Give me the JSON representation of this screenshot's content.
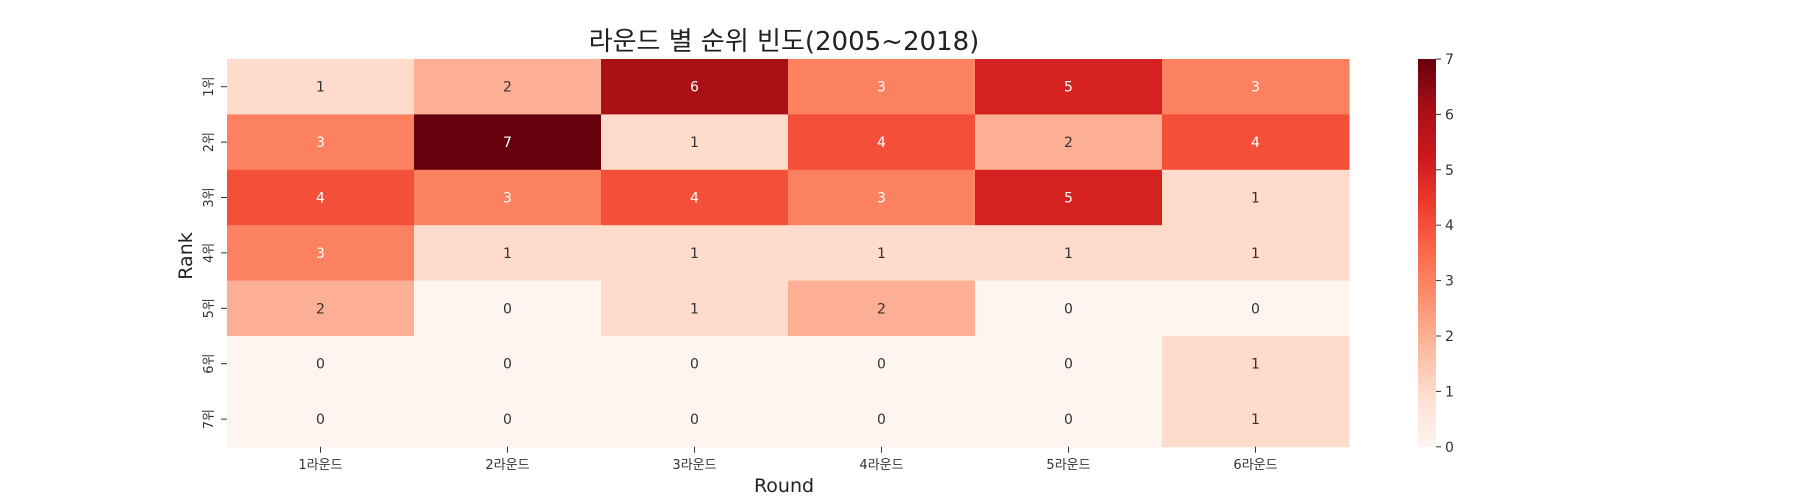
{
  "chart_data": {
    "type": "heatmap",
    "title": "라운드 별 순위 빈도(2005~2018)",
    "xlabel": "Round",
    "ylabel": "Rank",
    "x_categories": [
      "1라운드",
      "2라운드",
      "3라운드",
      "4라운드",
      "5라운드",
      "6라운드"
    ],
    "y_categories": [
      "1위",
      "2위",
      "3위",
      "4위",
      "5위",
      "6위",
      "7위"
    ],
    "values": [
      [
        1,
        2,
        6,
        3,
        5,
        3
      ],
      [
        3,
        7,
        1,
        4,
        2,
        4
      ],
      [
        4,
        3,
        4,
        3,
        5,
        1
      ],
      [
        3,
        1,
        1,
        1,
        1,
        1
      ],
      [
        2,
        0,
        1,
        2,
        0,
        0
      ],
      [
        0,
        0,
        0,
        0,
        0,
        1
      ],
      [
        0,
        0,
        0,
        0,
        0,
        1
      ]
    ],
    "value_range": [
      0,
      7
    ],
    "colorbar_ticks": [
      0,
      1,
      2,
      3,
      4,
      5,
      6,
      7
    ],
    "colormap": "Reds",
    "colormap_stops": [
      "#fff5f0",
      "#fee0d2",
      "#fcbba1",
      "#fc9272",
      "#fb6a4a",
      "#ef3b2c",
      "#cb181d",
      "#a50f15",
      "#67000d"
    ],
    "annotated": true,
    "grid": false,
    "colorbar_position": "right"
  }
}
